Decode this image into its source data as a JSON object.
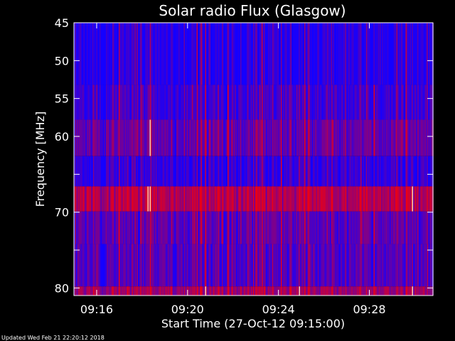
{
  "chart_data": {
    "type": "heatmap",
    "title": "Solar radio Flux (Glasgow)",
    "xlabel": "Start Time (27-Oct-12 09:15:00)",
    "ylabel": "Frequency [MHz]",
    "x_range_minutes": [
      0,
      15.8
    ],
    "ylim": [
      45,
      81
    ],
    "x_ticks": [
      {
        "label": "09:16",
        "minute": 1
      },
      {
        "label": "09:20",
        "minute": 5
      },
      {
        "label": "09:24",
        "minute": 9
      },
      {
        "label": "09:28",
        "minute": 13
      }
    ],
    "y_ticks": [
      45,
      50,
      55,
      60,
      65,
      70,
      75,
      80
    ],
    "y_tick_labels": [
      "45",
      "50",
      "55",
      "60",
      "",
      "70",
      "",
      "80"
    ],
    "colors": {
      "low": "#0000ff",
      "high": "#ff0000",
      "peak": "#ffffff",
      "background": "#000000"
    },
    "frequency_bands": [
      {
        "from": 45.0,
        "to": 53.2,
        "mix": 0.08
      },
      {
        "from": 53.2,
        "to": 57.8,
        "mix": 0.22
      },
      {
        "from": 57.8,
        "to": 62.6,
        "mix": 0.38
      },
      {
        "from": 62.6,
        "to": 66.6,
        "mix": 0.15
      },
      {
        "from": 66.6,
        "to": 69.9,
        "mix": 0.75
      },
      {
        "from": 69.9,
        "to": 74.2,
        "mix": 0.35
      },
      {
        "from": 74.2,
        "to": 79.8,
        "mix": 0.3
      },
      {
        "from": 79.8,
        "to": 81.0,
        "mix": 0.65
      }
    ]
  },
  "footer": "Updated Wed Feb 21 22:20:12 2018"
}
